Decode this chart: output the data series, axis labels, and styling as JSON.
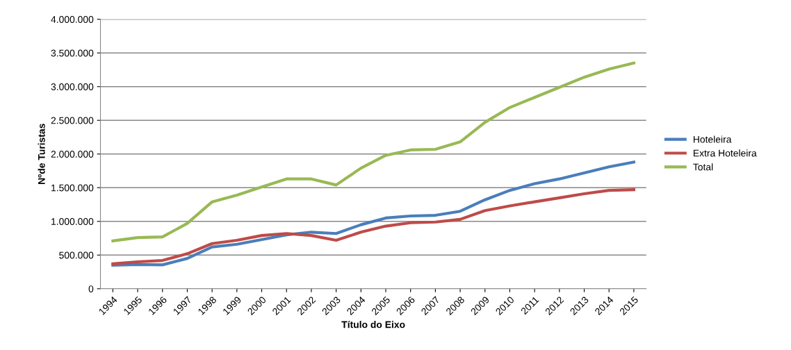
{
  "chart_data": {
    "type": "line",
    "xlabel": "Título do Eixo",
    "ylabel": "Nºde Turistas",
    "categories": [
      "1994",
      "1995",
      "1996",
      "1997",
      "1998",
      "1999",
      "2000",
      "2001",
      "2002",
      "2003",
      "2004",
      "2005",
      "2006",
      "2007",
      "2008",
      "2009",
      "2010",
      "2011",
      "2012",
      "2013",
      "2014",
      "2015"
    ],
    "series": [
      {
        "name": "Hoteleira",
        "color": "#4a7ebb",
        "values": [
          350000,
          360000,
          355000,
          450000,
          620000,
          660000,
          730000,
          800000,
          840000,
          820000,
          950000,
          1050000,
          1080000,
          1090000,
          1150000,
          1320000,
          1460000,
          1560000,
          1630000,
          1720000,
          1810000,
          1880000
        ]
      },
      {
        "name": "Extra Hoteleira",
        "color": "#be4b48",
        "values": [
          370000,
          400000,
          420000,
          520000,
          670000,
          720000,
          790000,
          820000,
          790000,
          720000,
          840000,
          930000,
          980000,
          990000,
          1030000,
          1160000,
          1230000,
          1290000,
          1350000,
          1410000,
          1460000,
          1470000
        ]
      },
      {
        "name": "Total",
        "color": "#98b954",
        "values": [
          710000,
          760000,
          770000,
          970000,
          1290000,
          1390000,
          1510000,
          1630000,
          1630000,
          1540000,
          1790000,
          1980000,
          2060000,
          2070000,
          2180000,
          2470000,
          2690000,
          2840000,
          2990000,
          3140000,
          3260000,
          3350000
        ]
      }
    ],
    "ylim": [
      0,
      4000000
    ],
    "yticks": [
      0,
      {
        "value": 500000,
        "label": "500.000"
      },
      {
        "value": 1000000,
        "label": "1.000.000"
      },
      {
        "value": 1500000,
        "label": "1.500.000"
      },
      {
        "value": 2000000,
        "label": "2.000.000"
      },
      {
        "value": 2500000,
        "label": "2.500.000"
      },
      {
        "value": 3000000,
        "label": "3.000.000"
      },
      {
        "value": 3500000,
        "label": "3.500.000"
      },
      {
        "value": 4000000,
        "label": "4.000.000"
      }
    ],
    "grid": "y",
    "legend": "right",
    "marker": "none",
    "line_style": "solid"
  }
}
